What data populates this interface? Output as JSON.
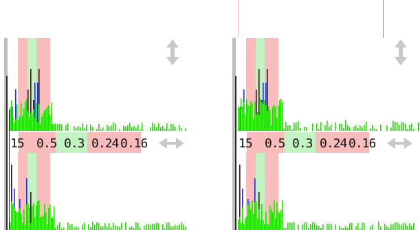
{
  "panels": [
    {
      "name": "left-panel",
      "resolution_labels": [
        "15",
        "0.5",
        "0.3",
        "0.24",
        "0.16"
      ]
    },
    {
      "name": "right-panel",
      "resolution_labels": [
        "15",
        "0.5",
        "0.3",
        "0.24",
        "0.16"
      ]
    }
  ],
  "colors": {
    "band_red": "#f9bcbc",
    "band_green": "#c3f2c3",
    "bar_green": "#22dd00",
    "bar_blue": "#1e2be0",
    "bar_dark": "#3a1010",
    "axis_gray": "#9a9a9a",
    "arrow_gray": "#c8c8c8"
  },
  "icons": {
    "vertical_resize": "double-vertical-arrow",
    "horizontal_resize": "double-horizontal-arrow"
  }
}
